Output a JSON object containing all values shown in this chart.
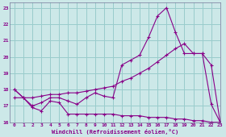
{
  "background_color": "#cce8e8",
  "grid_color": "#99cccc",
  "line_color": "#880088",
  "xlim": [
    -0.5,
    23
  ],
  "ylim": [
    16,
    23.3
  ],
  "xlabel": "Windchill (Refroidissement éolien,°C)",
  "xticks": [
    0,
    1,
    2,
    3,
    4,
    5,
    6,
    7,
    8,
    9,
    10,
    11,
    12,
    13,
    14,
    15,
    16,
    17,
    18,
    19,
    20,
    21,
    22,
    23
  ],
  "yticks": [
    16,
    17,
    18,
    19,
    20,
    21,
    22,
    23
  ],
  "line1_x": [
    0,
    1,
    2,
    3,
    4,
    5,
    6,
    7,
    8,
    9,
    10,
    11,
    12,
    13,
    14,
    15,
    16,
    17,
    18,
    19,
    20,
    21,
    22,
    23
  ],
  "line1_y": [
    18.0,
    17.5,
    16.9,
    16.7,
    17.3,
    17.2,
    16.5,
    16.5,
    16.5,
    16.5,
    16.5,
    16.5,
    16.4,
    16.4,
    16.4,
    16.3,
    16.3,
    16.3,
    16.2,
    16.2,
    16.1,
    16.1,
    16.0,
    16.0
  ],
  "line2_x": [
    0,
    1,
    2,
    3,
    4,
    5,
    6,
    7,
    8,
    9,
    10,
    11,
    12,
    13,
    14,
    15,
    16,
    17,
    18,
    19,
    20,
    21,
    22,
    23
  ],
  "line2_y": [
    18.0,
    17.5,
    17.0,
    17.2,
    17.5,
    17.5,
    17.3,
    17.1,
    17.5,
    17.8,
    17.6,
    17.5,
    19.5,
    19.8,
    20.1,
    21.2,
    22.5,
    23.0,
    21.5,
    20.2,
    20.2,
    20.2,
    17.1,
    16.0
  ],
  "line3_x": [
    0,
    1,
    2,
    3,
    4,
    5,
    6,
    7,
    8,
    9,
    10,
    11,
    12,
    13,
    14,
    15,
    16,
    17,
    18,
    19,
    20,
    21,
    22,
    23
  ],
  "line3_y": [
    17.5,
    17.5,
    17.5,
    17.6,
    17.7,
    17.7,
    17.8,
    17.8,
    17.9,
    18.0,
    18.1,
    18.2,
    18.5,
    18.7,
    19.0,
    19.3,
    19.7,
    20.1,
    20.5,
    20.8,
    20.2,
    20.2,
    19.5,
    16.0
  ]
}
